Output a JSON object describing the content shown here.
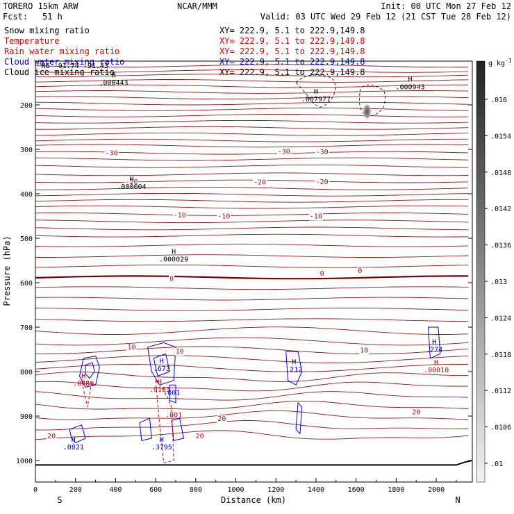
{
  "chart_data": {
    "type": "cross-section",
    "header": {
      "model": "TORERO  15km ARW",
      "center": "NCAR/MMM",
      "init": "Init: 00 UTC Mon 27 Feb 12",
      "fcst_label": "Fcst:",
      "fcst_value": "51 h",
      "valid": "Valid: 03 UTC Wed 29 Feb 12 (21 CST Tue 28 Feb 12)"
    },
    "legend": [
      {
        "name": "Snow mixing ratio",
        "color": "#000000",
        "xy": "XY= 222.9,  5.1 to 222.9,149.8"
      },
      {
        "name": "Temperature",
        "color": "#cc0000",
        "xy": "XY= 222.9,  5.1 to 222.9,149.8"
      },
      {
        "name": "Rain water mixing ratio",
        "color": "#cc0000",
        "xy": "XY= 222.9,  5.1 to 222.9,149.8"
      },
      {
        "name": "Cloud water mixing ratio",
        "color": "#0000cc",
        "xy": "XY= 222.9,  5.1 to 222.9,149.8"
      },
      {
        "name": "Cloud ice mixing ratio",
        "color": "#000000",
        "xy": "XY= 222.9,  5.1 to 222.9,149.8"
      }
    ],
    "xlabel": "Distance (km)",
    "ylabel": "Pressure (hPa)",
    "xlim": [
      0,
      2180
    ],
    "ylim": [
      1050,
      100
    ],
    "x_ticks": [
      0,
      200,
      400,
      600,
      800,
      1000,
      1200,
      1400,
      1600,
      1800,
      2000
    ],
    "y_ticks": [
      200,
      300,
      400,
      500,
      600,
      700,
      800,
      900,
      1000
    ],
    "x_end_labels": {
      "left": "S",
      "right": "N"
    },
    "colorbar": {
      "units": "g kg",
      "units_exp": "-1",
      "labels": [
        ".016",
        ".0154",
        ".0148",
        ".0142",
        ".0136",
        ".013",
        ".0124",
        ".0118",
        ".0112",
        ".0106",
        ".01"
      ]
    },
    "isotherm_labels": [
      {
        "x": 380,
        "p": 307,
        "text": "-30"
      },
      {
        "x": 1240,
        "p": 304,
        "text": "-30"
      },
      {
        "x": 1430,
        "p": 305,
        "text": "-30"
      },
      {
        "x": 480,
        "p": 372,
        "text": "-20"
      },
      {
        "x": 1120,
        "p": 373,
        "text": "-20"
      },
      {
        "x": 1430,
        "p": 372,
        "text": "-20"
      },
      {
        "x": 720,
        "p": 447,
        "text": "-10"
      },
      {
        "x": 940,
        "p": 449,
        "text": "-10"
      },
      {
        "x": 1400,
        "p": 449,
        "text": "-10"
      },
      {
        "x": 680,
        "p": 590,
        "text": "0"
      },
      {
        "x": 1430,
        "p": 578,
        "text": "0"
      },
      {
        "x": 1620,
        "p": 572,
        "text": "0"
      },
      {
        "x": 480,
        "p": 744,
        "text": "10"
      },
      {
        "x": 720,
        "p": 753,
        "text": "10"
      },
      {
        "x": 1640,
        "p": 751,
        "text": "10"
      },
      {
        "x": 820,
        "p": 944,
        "text": "20"
      },
      {
        "x": 930,
        "p": 905,
        "text": "20"
      },
      {
        "x": 80,
        "p": 944,
        "text": "20"
      },
      {
        "x": 1900,
        "p": 890,
        "text": "20"
      }
    ],
    "maxima": [
      {
        "x": 390,
        "p": 138,
        "letter": "H",
        "value": ".000443",
        "series": "Snow mixing ratio"
      },
      {
        "x": 480,
        "p": 372,
        "letter": "H",
        "value": ".000004",
        "series": "Cloud ice mixing ratio"
      },
      {
        "x": 690,
        "p": 535,
        "letter": "H",
        "value": ".000029",
        "series": "Cloud ice mixing ratio"
      },
      {
        "x": 1400,
        "p": 175,
        "letter": "H",
        "value": ".007977",
        "series": "Snow mixing ratio"
      },
      {
        "x": 1870,
        "p": 148,
        "letter": "H",
        "value": ".000943",
        "series": "Snow mixing ratio"
      },
      {
        "x": 240,
        "p": 815,
        "letter": "H",
        "value": ".0789",
        "series": "Rain water mixing ratio"
      },
      {
        "x": 630,
        "p": 781,
        "letter": "H",
        "value": ".673",
        "series": "Cloud water mixing ratio"
      },
      {
        "x": 620,
        "p": 828,
        "letter": "H",
        "value": ".0163",
        "series": "Rain water mixing ratio"
      },
      {
        "x": 680,
        "p": 835,
        "letter": "",
        "value": ".001",
        "series": "Cloud water mixing ratio"
      },
      {
        "x": 690,
        "p": 885,
        "letter": "",
        "value": ".001",
        "series": "Rain water mixing ratio"
      },
      {
        "x": 1290,
        "p": 783,
        "letter": "H",
        "value": ".212",
        "series": "Cloud water mixing ratio"
      },
      {
        "x": 1990,
        "p": 738,
        "letter": "H",
        "value": ".274",
        "series": "Cloud water mixing ratio"
      },
      {
        "x": 2000,
        "p": 784,
        "letter": "H",
        "value": ".00010",
        "series": "Rain water mixing ratio"
      },
      {
        "x": 190,
        "p": 958,
        "letter": "H",
        "value": ".0821",
        "series": "Cloud water mixing ratio"
      },
      {
        "x": 630,
        "p": 958,
        "letter": "H",
        "value": ".3795",
        "series": "Cloud water mixing ratio"
      }
    ],
    "top_clipped_text": "H6 -91.74   -91.43"
  }
}
